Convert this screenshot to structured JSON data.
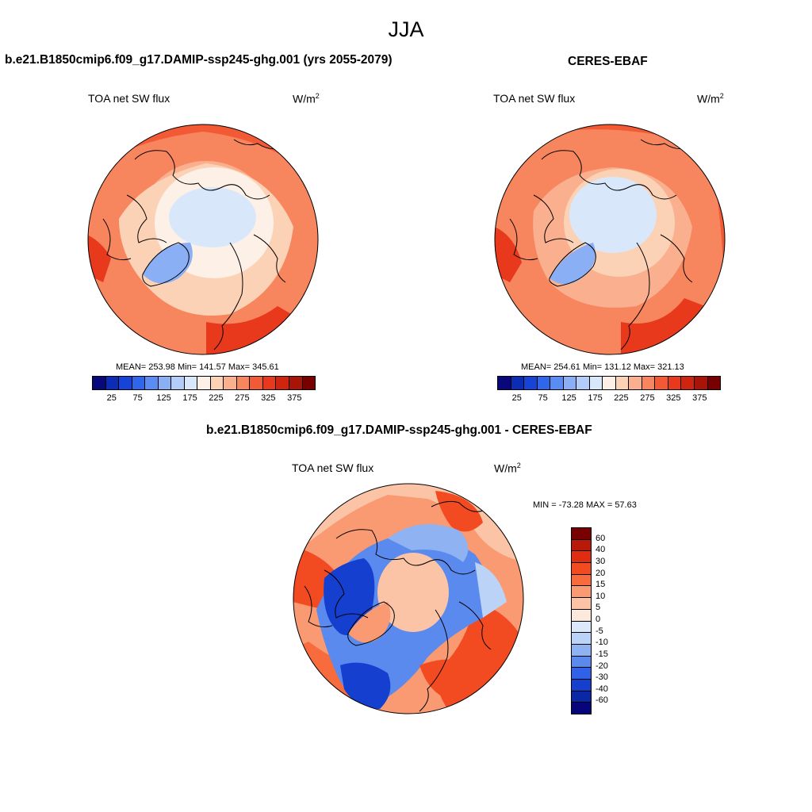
{
  "main_title": "JJA",
  "panel_left": {
    "title": "b.e21.B1850cmip6.f09_g17.DAMIP-ssp245-ghg.001 (yrs 2055-2079)",
    "variable": "TOA net SW flux",
    "units": "W/m",
    "units_sup": "2",
    "stats": "MEAN= 253.98  Min= 141.57  Max= 345.61"
  },
  "panel_right": {
    "title": "CERES-EBAF",
    "variable": "TOA net SW flux",
    "units": "W/m",
    "units_sup": "2",
    "stats": "MEAN= 254.61  Min= 131.12  Max= 321.13"
  },
  "panel_diff": {
    "title": "b.e21.B1850cmip6.f09_g17.DAMIP-ssp245-ghg.001 - CERES-EBAF",
    "variable": "TOA net SW flux",
    "units": "W/m",
    "units_sup": "2",
    "stats": "MIN = -73.28 MAX =  57.63"
  },
  "colorbar_abs": {
    "colors": [
      "#08087a",
      "#0c2cb4",
      "#1744d6",
      "#2f66ea",
      "#5a8cf2",
      "#8aaff5",
      "#b4cdf8",
      "#d9e7fb",
      "#fdf0e6",
      "#fcd2b6",
      "#fab08e",
      "#f7865f",
      "#f25a35",
      "#e8391c",
      "#cf2410",
      "#a81408",
      "#780000"
    ],
    "ticks": [
      "25",
      "75",
      "125",
      "175",
      "225",
      "275",
      "325",
      "375"
    ]
  },
  "colorbar_diff": {
    "colors": [
      "#780000",
      "#b81908",
      "#e02c10",
      "#f24b22",
      "#f76b3d",
      "#fa9a72",
      "#fcc4a6",
      "#fde9dc",
      "#dce9fb",
      "#bcd3f8",
      "#8fb2f3",
      "#5a8aee",
      "#2f62e6",
      "#143fcf",
      "#0a28a6",
      "#06067a"
    ],
    "ticks": [
      "60",
      "40",
      "30",
      "20",
      "15",
      "10",
      "5",
      "0",
      "-5",
      "-10",
      "-15",
      "-20",
      "-30",
      "-40",
      "-60"
    ]
  }
}
